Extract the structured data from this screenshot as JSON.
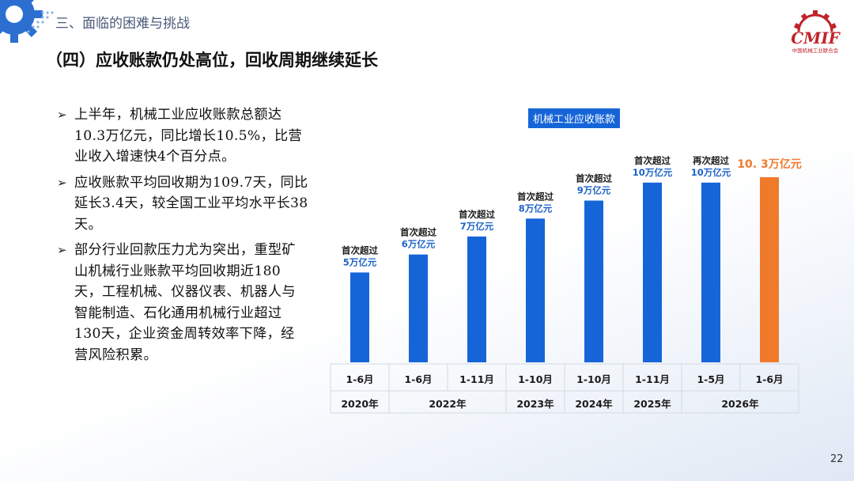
{
  "section_title": "三、面临的困难与挑战",
  "slide_title": "（四）应收账款仍处高位，回收周期继续延长",
  "logo": {
    "text": "CMIF",
    "subtitle": "中国机械工业联合会"
  },
  "bullets": [
    "上半年，机械工业应收账款总额达10.3万亿元，同比增长10.5%，比营业收入增速快4个百分点。",
    "应收账款平均回收期为109.7天，同比延长3.4天，较全国工业平均水平长38天。",
    "部分行业回款压力尤为突出，重型矿山机械行业账款平均回收期近180天，工程机械、仪器仪表、机器人与智能制造、石化通用机械行业超过130天，企业资金周转效率下降，经营风险积累。"
  ],
  "page_number": "22",
  "colors": {
    "bar_blue": "#1565d8",
    "bar_orange": "#ef7a2c",
    "label_blue": "#1e63c8"
  },
  "chart_data": {
    "type": "bar",
    "title": "机械工业应收账款",
    "categories": [
      "1-6月",
      "1-6月",
      "1-11月",
      "1-10月",
      "1-10月",
      "1-11月",
      "1-5月",
      "1-6月"
    ],
    "year_groups": [
      {
        "label": "2020年",
        "span": 1
      },
      {
        "label": "2022年",
        "span": 2
      },
      {
        "label": "2023年",
        "span": 1
      },
      {
        "label": "2024年",
        "span": 1
      },
      {
        "label": "2025年",
        "span": 1
      },
      {
        "label": "2026年",
        "span": 2
      }
    ],
    "values": [
      5,
      6,
      7,
      8,
      9,
      10,
      10,
      10.3
    ],
    "unit": "万亿元",
    "annotations": [
      {
        "line1": "首次超过",
        "line2": "5万亿元"
      },
      {
        "line1": "首次超过",
        "line2": "6万亿元"
      },
      {
        "line1": "首次超过",
        "line2": "7万亿元"
      },
      {
        "line1": "首次超过",
        "line2": "8万亿元"
      },
      {
        "line1": "首次超过",
        "line2": "9万亿元"
      },
      {
        "line1": "首次超过",
        "line2": "10万亿元"
      },
      {
        "line1": "再次超过",
        "line2": "10万亿元"
      },
      {
        "line1": "",
        "line2": "10. 3万亿元"
      }
    ],
    "highlight_index": 7,
    "ylim": [
      0,
      10.3
    ]
  }
}
